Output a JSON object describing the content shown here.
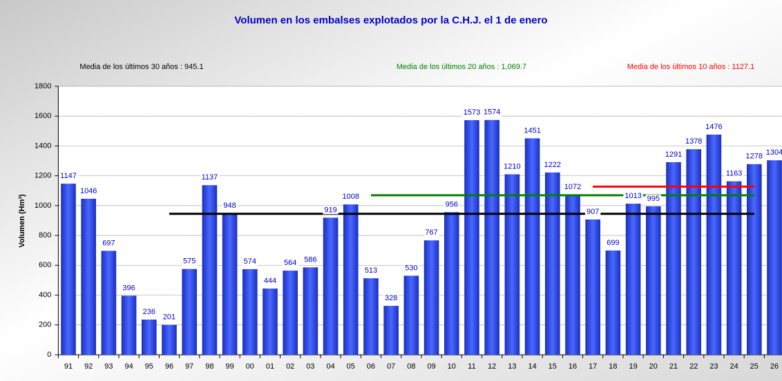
{
  "chart_data": {
    "type": "bar",
    "title": "Volumen en los embalses explotados por la C.H.J. el 1 de enero",
    "y_label": "Volumen (Hm³)",
    "categories": [
      "91",
      "92",
      "93",
      "94",
      "95",
      "96",
      "97",
      "98",
      "99",
      "00",
      "01",
      "02",
      "03",
      "04",
      "05",
      "06",
      "07",
      "08",
      "09",
      "10",
      "11",
      "12",
      "13",
      "14",
      "15",
      "16",
      "17",
      "18",
      "19",
      "20",
      "21",
      "22",
      "23",
      "24",
      "25",
      "26"
    ],
    "values": [
      1147,
      1046,
      697,
      396,
      236,
      201,
      575,
      1137,
      948,
      574,
      444,
      564,
      586,
      919,
      1008,
      513,
      328,
      530,
      767,
      956,
      1573,
      1574,
      1210,
      1451,
      1222,
      1072,
      907,
      699,
      1013,
      995,
      1291,
      1378,
      1476,
      1163,
      1278,
      1304
    ],
    "color": "#2b48ee",
    "ylim": [
      0,
      1800
    ],
    "yticks": [
      0,
      200,
      400,
      600,
      800,
      1000,
      1200,
      1400,
      1600,
      1800
    ],
    "grid": true,
    "mean_lines": [
      {
        "label": "Media de los últimos 30 años : 945.1",
        "value": 945.1,
        "color": "#000000",
        "from": "96",
        "to": "25"
      },
      {
        "label": "Media de los últimos 20 años : 1,069.7",
        "value": 1069.7,
        "color": "#008000",
        "from": "06",
        "to": "25"
      },
      {
        "label": "Media de los últimos 10 años : 1127.1",
        "value": 1127.1,
        "color": "#ff0000",
        "from": "17",
        "to": "25"
      }
    ]
  }
}
